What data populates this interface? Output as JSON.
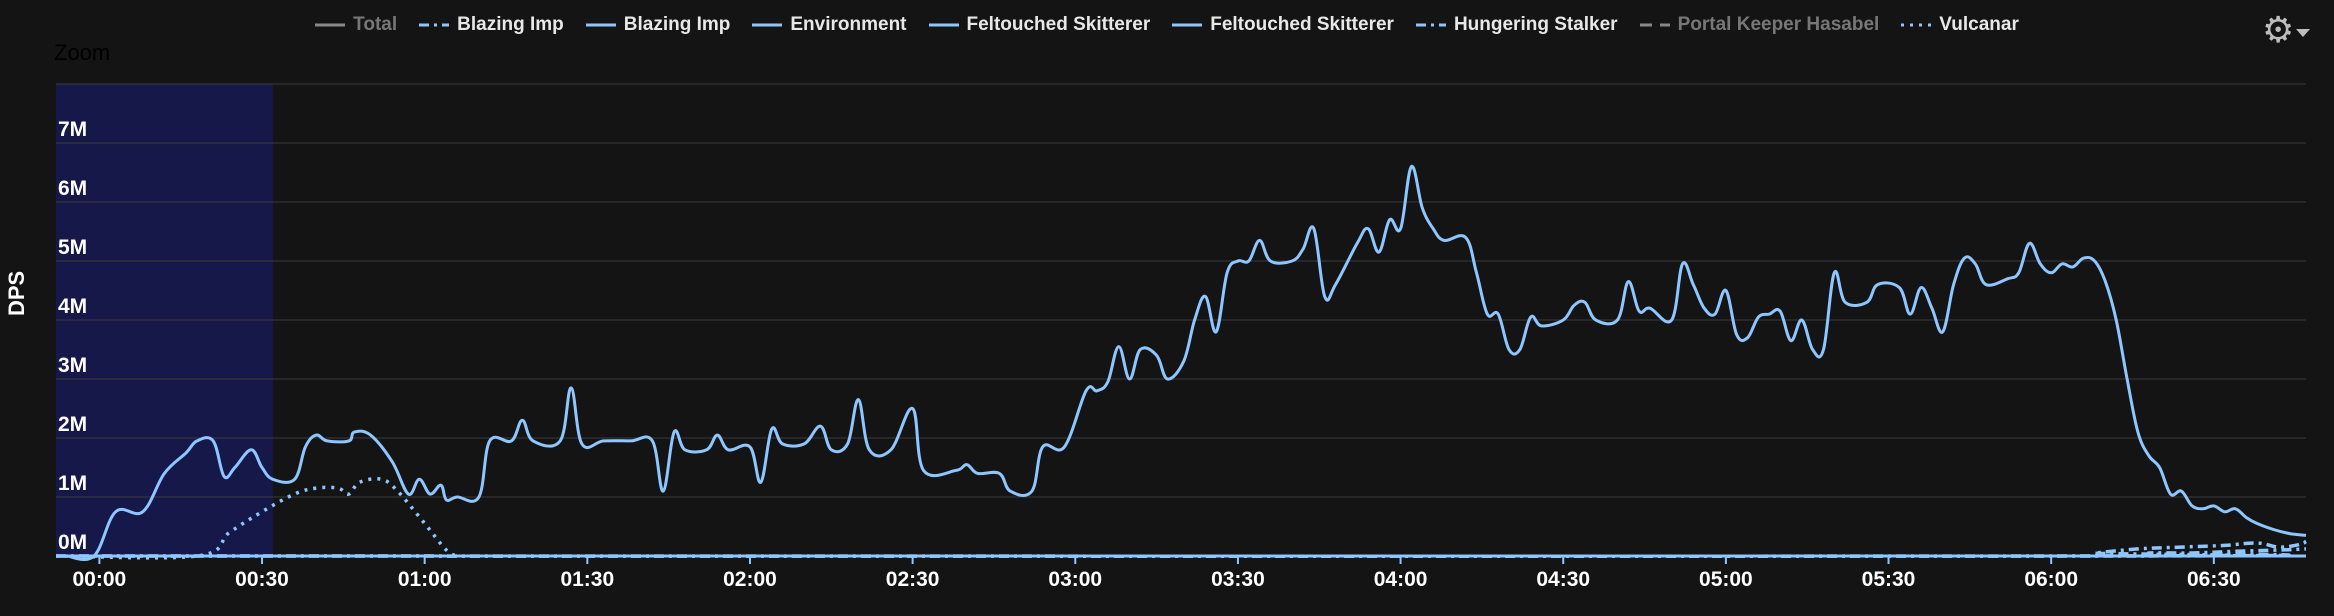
{
  "zoom_label": "Zoom",
  "legend": [
    {
      "name": "Total",
      "style": "solid",
      "color": "#888888",
      "hidden": true
    },
    {
      "name": "Blazing Imp",
      "style": "dashdot",
      "color": "#8ec6ff",
      "hidden": false
    },
    {
      "name": "Blazing Imp",
      "style": "solid",
      "color": "#8ec6ff",
      "hidden": false
    },
    {
      "name": "Environment",
      "style": "solid",
      "color": "#8ec6ff",
      "hidden": false
    },
    {
      "name": "Feltouched Skitterer",
      "style": "solid",
      "color": "#8ec6ff",
      "hidden": false
    },
    {
      "name": "Feltouched Skitterer",
      "style": "solid",
      "color": "#8ec6ff",
      "hidden": false
    },
    {
      "name": "Hungering Stalker",
      "style": "dashdot",
      "color": "#8ec6ff",
      "hidden": false
    },
    {
      "name": "Portal Keeper Hasabel",
      "style": "dashed",
      "color": "#888888",
      "hidden": true
    },
    {
      "name": "Vulcanar",
      "style": "dotted",
      "color": "#8ec6ff",
      "hidden": false
    }
  ],
  "settings_icon": "gear-icon",
  "chart_data": {
    "type": "line",
    "xlabel": "",
    "ylabel": "DPS",
    "x_ticks": [
      "00:00",
      "00:30",
      "01:00",
      "01:30",
      "02:00",
      "02:30",
      "03:00",
      "03:30",
      "04:00",
      "04:30",
      "05:00",
      "05:30",
      "06:00",
      "06:30"
    ],
    "y_ticks": [
      "0M",
      "1M",
      "2M",
      "3M",
      "4M",
      "5M",
      "6M",
      "7M"
    ],
    "x_range_seconds": [
      -8,
      407
    ],
    "ylim": [
      0,
      8
    ],
    "grid": true,
    "legend_position": "top",
    "zoom_band_seconds": [
      -8,
      32
    ],
    "colors": {
      "background": "#141414",
      "grid": "#3a3a3a",
      "series": "#8ec6ff",
      "zoom": "#16184a"
    },
    "series": [
      {
        "name": "Feltouched Skitterer",
        "style": "solid",
        "points": [
          [
            -6,
            0
          ],
          [
            -1,
            0
          ],
          [
            3,
            0.75
          ],
          [
            8,
            0.75
          ],
          [
            12,
            1.4
          ],
          [
            16,
            1.75
          ],
          [
            18,
            1.95
          ],
          [
            21,
            1.95
          ],
          [
            23,
            1.35
          ],
          [
            25,
            1.5
          ],
          [
            28,
            1.8
          ],
          [
            30,
            1.5
          ],
          [
            32,
            1.3
          ],
          [
            36,
            1.3
          ],
          [
            38,
            1.85
          ],
          [
            40,
            2.05
          ],
          [
            42,
            1.95
          ],
          [
            46,
            1.95
          ],
          [
            47,
            2.1
          ],
          [
            50,
            2.05
          ],
          [
            54,
            1.6
          ],
          [
            57,
            1.05
          ],
          [
            59,
            1.3
          ],
          [
            61,
            1.05
          ],
          [
            63,
            1.2
          ],
          [
            64,
            0.95
          ],
          [
            66,
            1.0
          ],
          [
            70,
            1.0
          ],
          [
            72,
            1.95
          ],
          [
            76,
            1.95
          ],
          [
            78,
            2.3
          ],
          [
            80,
            1.95
          ],
          [
            85,
            1.95
          ],
          [
            87,
            2.85
          ],
          [
            89,
            1.9
          ],
          [
            93,
            1.95
          ],
          [
            98,
            1.95
          ],
          [
            102,
            1.95
          ],
          [
            104,
            1.1
          ],
          [
            106,
            2.1
          ],
          [
            108,
            1.8
          ],
          [
            112,
            1.8
          ],
          [
            114,
            2.05
          ],
          [
            116,
            1.8
          ],
          [
            120,
            1.85
          ],
          [
            122,
            1.25
          ],
          [
            124,
            2.15
          ],
          [
            126,
            1.9
          ],
          [
            130,
            1.9
          ],
          [
            133,
            2.2
          ],
          [
            135,
            1.8
          ],
          [
            138,
            1.9
          ],
          [
            140,
            2.65
          ],
          [
            142,
            1.8
          ],
          [
            146,
            1.8
          ],
          [
            150,
            2.5
          ],
          [
            152,
            1.45
          ],
          [
            158,
            1.45
          ],
          [
            160,
            1.55
          ],
          [
            162,
            1.4
          ],
          [
            166,
            1.4
          ],
          [
            168,
            1.1
          ],
          [
            172,
            1.1
          ],
          [
            174,
            1.85
          ],
          [
            178,
            1.85
          ],
          [
            182,
            2.8
          ],
          [
            184,
            2.8
          ],
          [
            186,
            2.95
          ],
          [
            188,
            3.55
          ],
          [
            190,
            3.0
          ],
          [
            192,
            3.5
          ],
          [
            195,
            3.4
          ],
          [
            197,
            3.0
          ],
          [
            200,
            3.3
          ],
          [
            202,
            4.0
          ],
          [
            204,
            4.4
          ],
          [
            206,
            3.8
          ],
          [
            208,
            4.8
          ],
          [
            210,
            5.0
          ],
          [
            212,
            5.0
          ],
          [
            214,
            5.35
          ],
          [
            216,
            5.0
          ],
          [
            220,
            5.0
          ],
          [
            222,
            5.2
          ],
          [
            224,
            5.55
          ],
          [
            226,
            4.4
          ],
          [
            228,
            4.6
          ],
          [
            232,
            5.3
          ],
          [
            234,
            5.55
          ],
          [
            236,
            5.15
          ],
          [
            238,
            5.7
          ],
          [
            240,
            5.55
          ],
          [
            242,
            6.6
          ],
          [
            244,
            5.9
          ],
          [
            246,
            5.55
          ],
          [
            248,
            5.35
          ],
          [
            252,
            5.4
          ],
          [
            254,
            4.8
          ],
          [
            256,
            4.1
          ],
          [
            258,
            4.1
          ],
          [
            260,
            3.5
          ],
          [
            262,
            3.5
          ],
          [
            264,
            4.05
          ],
          [
            266,
            3.9
          ],
          [
            270,
            4.0
          ],
          [
            272,
            4.25
          ],
          [
            274,
            4.3
          ],
          [
            276,
            4.0
          ],
          [
            280,
            4.0
          ],
          [
            282,
            4.65
          ],
          [
            284,
            4.15
          ],
          [
            286,
            4.2
          ],
          [
            290,
            4.0
          ],
          [
            292,
            4.95
          ],
          [
            294,
            4.6
          ],
          [
            296,
            4.2
          ],
          [
            298,
            4.1
          ],
          [
            300,
            4.5
          ],
          [
            302,
            3.75
          ],
          [
            304,
            3.7
          ],
          [
            306,
            4.05
          ],
          [
            308,
            4.1
          ],
          [
            310,
            4.15
          ],
          [
            312,
            3.65
          ],
          [
            314,
            4.0
          ],
          [
            316,
            3.5
          ],
          [
            318,
            3.5
          ],
          [
            320,
            4.8
          ],
          [
            322,
            4.3
          ],
          [
            326,
            4.3
          ],
          [
            328,
            4.6
          ],
          [
            332,
            4.55
          ],
          [
            334,
            4.1
          ],
          [
            336,
            4.55
          ],
          [
            338,
            4.2
          ],
          [
            340,
            3.8
          ],
          [
            342,
            4.6
          ],
          [
            344,
            5.05
          ],
          [
            346,
            4.95
          ],
          [
            348,
            4.6
          ],
          [
            352,
            4.7
          ],
          [
            354,
            4.8
          ],
          [
            356,
            5.3
          ],
          [
            358,
            4.95
          ],
          [
            360,
            4.8
          ],
          [
            362,
            4.95
          ],
          [
            364,
            4.9
          ],
          [
            366,
            5.05
          ],
          [
            368,
            5.0
          ],
          [
            370,
            4.65
          ],
          [
            372,
            4.0
          ],
          [
            374,
            3.0
          ],
          [
            376,
            2.1
          ],
          [
            378,
            1.7
          ],
          [
            380,
            1.5
          ],
          [
            382,
            1.05
          ],
          [
            384,
            1.1
          ],
          [
            386,
            0.85
          ],
          [
            388,
            0.8
          ],
          [
            390,
            0.85
          ],
          [
            392,
            0.75
          ],
          [
            394,
            0.8
          ],
          [
            396,
            0.65
          ],
          [
            398,
            0.55
          ],
          [
            401,
            0.45
          ],
          [
            404,
            0.38
          ],
          [
            407,
            0.35
          ]
        ]
      },
      {
        "name": "Vulcanar",
        "style": "dotted",
        "points": [
          [
            -8,
            0
          ],
          [
            18,
            0
          ],
          [
            24,
            0.4
          ],
          [
            30,
            0.75
          ],
          [
            36,
            1.05
          ],
          [
            40,
            1.15
          ],
          [
            44,
            1.15
          ],
          [
            46,
            1.05
          ],
          [
            48,
            1.25
          ],
          [
            52,
            1.3
          ],
          [
            55,
            1.1
          ],
          [
            60,
            0.55
          ],
          [
            64,
            0.1
          ],
          [
            66,
            0
          ]
        ]
      },
      {
        "name": "Hungering Stalker",
        "style": "dashdot",
        "points": [
          [
            -8,
            0
          ],
          [
            362,
            0
          ],
          [
            368,
            0.05
          ],
          [
            376,
            0.12
          ],
          [
            384,
            0.15
          ],
          [
            392,
            0.18
          ],
          [
            398,
            0.22
          ],
          [
            402,
            0.15
          ],
          [
            406,
            0.2
          ],
          [
            407,
            0.25
          ]
        ]
      },
      {
        "name": "Blazing Imp",
        "style": "dashdot",
        "points": [
          [
            -8,
            0
          ],
          [
            372,
            0
          ],
          [
            378,
            0.05
          ],
          [
            386,
            0.05
          ],
          [
            394,
            0.08
          ],
          [
            402,
            0.1
          ],
          [
            407,
            0.12
          ]
        ]
      }
    ]
  }
}
